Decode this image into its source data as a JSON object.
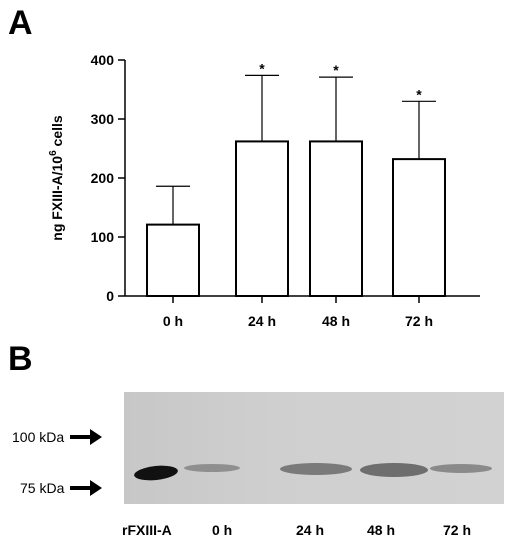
{
  "panel_a": {
    "label": "A"
  },
  "panel_b": {
    "label": "B"
  },
  "chart_data": {
    "type": "bar",
    "title": "",
    "xlabel": "",
    "ylabel": "ng FXIII-A/10",
    "ylabel_sup": "6",
    "ylabel_suffix": " cells",
    "categories": [
      "0 h",
      "24 h",
      "48 h",
      "72 h"
    ],
    "values": [
      121,
      262,
      262,
      232
    ],
    "error_upper": [
      186,
      374,
      371,
      330
    ],
    "significance": [
      "",
      "*",
      "*",
      "*"
    ],
    "ylim": [
      0,
      400
    ],
    "yticks": [
      0,
      100,
      200,
      300,
      400
    ],
    "grid": false,
    "bar_fill": "#ffffff",
    "bar_stroke": "#000000"
  },
  "blot": {
    "markers": [
      {
        "label": "100 kDa"
      },
      {
        "label": "75 kDa"
      }
    ],
    "lanes": [
      "rFXIII-A",
      "0 h",
      "24 h",
      "48 h",
      "72 h"
    ],
    "band_color": "#1a1a1a"
  }
}
